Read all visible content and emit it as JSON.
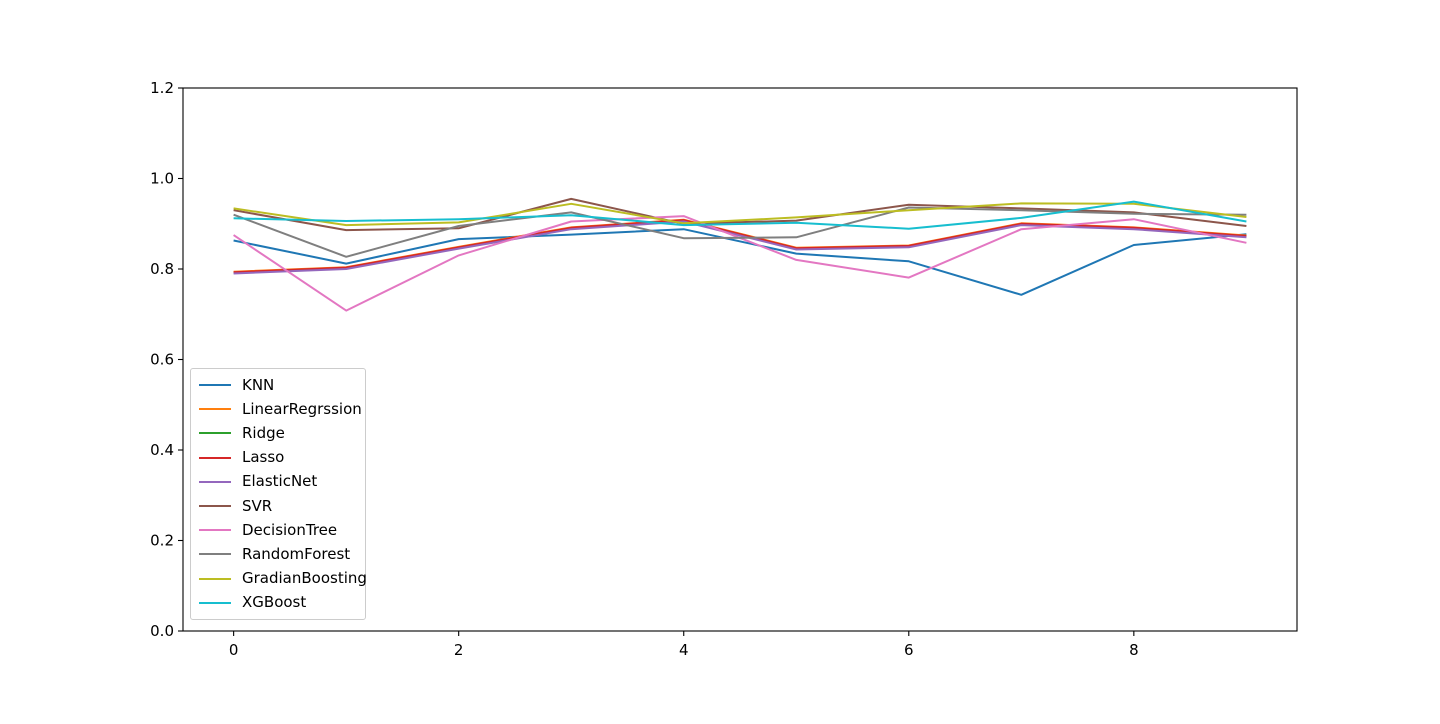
{
  "figure": {
    "background": "#ffffff",
    "axis_color": "#000000",
    "legend_border_color": "#cccccc"
  },
  "chart_data": {
    "type": "line",
    "title": "",
    "xlabel": "",
    "ylabel": "",
    "grid": false,
    "legend_position": "lower left",
    "x": [
      0,
      1,
      2,
      3,
      4,
      5,
      6,
      7,
      8,
      9
    ],
    "xlim": [
      -0.45,
      9.45
    ],
    "ylim": [
      0,
      1.2
    ],
    "xticks": [
      0,
      2,
      4,
      6,
      8
    ],
    "xtick_labels": [
      "0",
      "2",
      "4",
      "6",
      "8"
    ],
    "yticks": [
      0,
      0.2,
      0.4,
      0.6,
      0.8,
      1.0,
      1.2
    ],
    "ytick_labels": [
      "0.0",
      "0.2",
      "0.4",
      "0.6",
      "0.8",
      "1.0",
      "1.2"
    ],
    "series": [
      {
        "name": "KNN",
        "color": "#1f77b4",
        "values": [
          0.863,
          0.812,
          0.866,
          0.876,
          0.888,
          0.834,
          0.817,
          0.743,
          0.853,
          0.877
        ]
      },
      {
        "name": "LinearRegrssion",
        "color": "#ff7f0e",
        "values": [
          0.794,
          0.804,
          0.849,
          0.892,
          0.909,
          0.847,
          0.852,
          0.901,
          0.892,
          0.874
        ]
      },
      {
        "name": "Ridge",
        "color": "#2ca02c",
        "values": [
          0.792,
          0.802,
          0.847,
          0.89,
          0.907,
          0.845,
          0.85,
          0.899,
          0.89,
          0.872
        ]
      },
      {
        "name": "Lasso",
        "color": "#d62728",
        "values": [
          0.793,
          0.803,
          0.848,
          0.891,
          0.908,
          0.846,
          0.851,
          0.9,
          0.891,
          0.873
        ]
      },
      {
        "name": "ElasticNet",
        "color": "#9467bd",
        "values": [
          0.79,
          0.8,
          0.845,
          0.888,
          0.905,
          0.843,
          0.848,
          0.897,
          0.888,
          0.87
        ]
      },
      {
        "name": "SVR",
        "color": "#8c564b",
        "values": [
          0.93,
          0.886,
          0.89,
          0.955,
          0.9,
          0.907,
          0.942,
          0.934,
          0.925,
          0.895
        ]
      },
      {
        "name": "DecisionTree",
        "color": "#e377c2",
        "values": [
          0.875,
          0.708,
          0.83,
          0.905,
          0.917,
          0.82,
          0.781,
          0.888,
          0.91,
          0.858
        ]
      },
      {
        "name": "RandomForest",
        "color": "#7f7f7f",
        "values": [
          0.92,
          0.827,
          0.895,
          0.925,
          0.868,
          0.87,
          0.936,
          0.93,
          0.922,
          0.92
        ]
      },
      {
        "name": "GradianBoosting",
        "color": "#bcbd22",
        "values": [
          0.934,
          0.897,
          0.903,
          0.944,
          0.901,
          0.914,
          0.93,
          0.945,
          0.944,
          0.915
        ]
      },
      {
        "name": "XGBoost",
        "color": "#17becf",
        "values": [
          0.912,
          0.906,
          0.91,
          0.919,
          0.897,
          0.902,
          0.889,
          0.913,
          0.949,
          0.905
        ]
      }
    ]
  }
}
